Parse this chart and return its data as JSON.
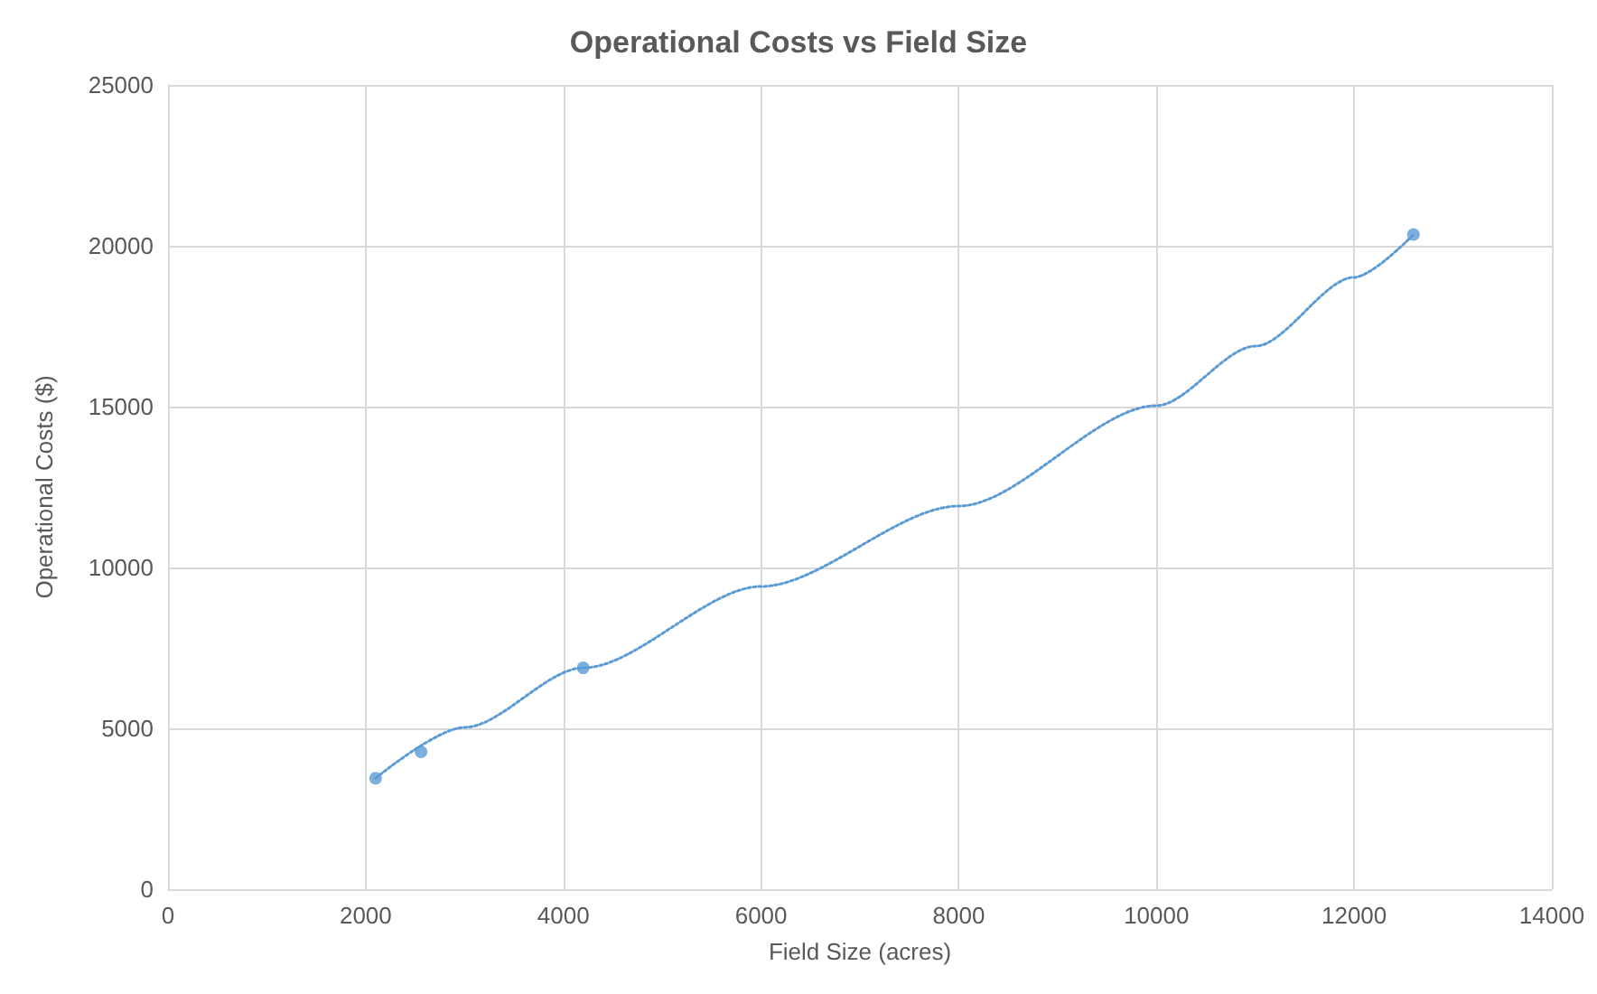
{
  "chart_data": {
    "type": "scatter",
    "title": "Operational Costs vs Field Size",
    "xlabel": "Field Size (acres)",
    "ylabel": "Operational Costs ($)",
    "series": [
      {
        "color": "#5b9bd5",
        "marker": "circle",
        "x": [
          2100,
          2560,
          4200,
          12600
        ],
        "values": [
          3450,
          4270,
          6880,
          20350
        ]
      },
      {
        "type": "line",
        "color": "#5b9bd5",
        "marker": "none",
        "line_style": "dotted",
        "x": [
          2100,
          3000,
          4200,
          6000,
          8000,
          10000,
          11000,
          12000,
          12600
        ],
        "values": [
          3450,
          5030,
          6880,
          9410,
          11910,
          15030,
          16880,
          19020,
          20350
        ]
      }
    ],
    "xlim": [
      0,
      14000
    ],
    "xticks": [
      0,
      2000,
      4000,
      6000,
      8000,
      10000,
      12000,
      14000
    ],
    "ylim": [
      0,
      25000
    ],
    "yticks": [
      0,
      5000,
      10000,
      15000,
      20000,
      25000
    ],
    "grid": true
  }
}
